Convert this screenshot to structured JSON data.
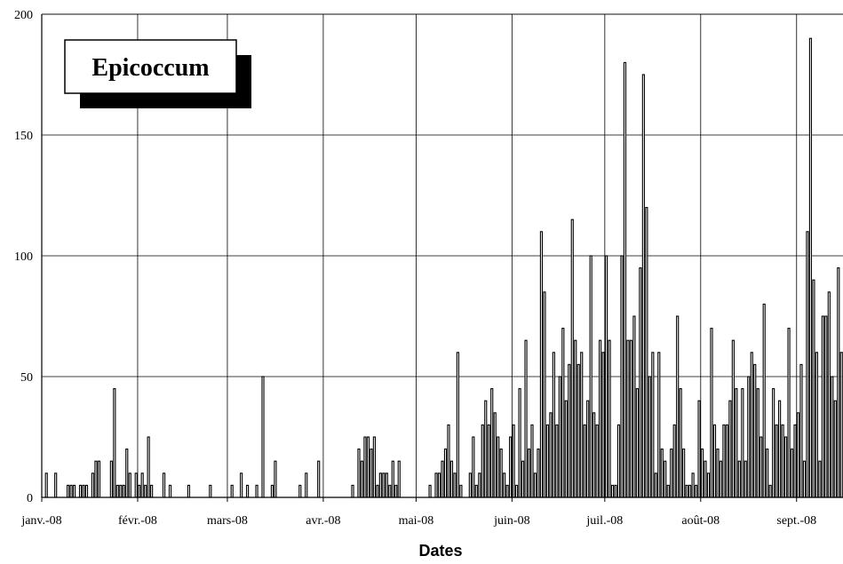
{
  "chart_data": {
    "type": "bar",
    "title": "Epicoccum",
    "xlabel": "Dates",
    "ylabel": "",
    "ylim": [
      0,
      200
    ],
    "y_ticks": [
      "0",
      "50",
      "100",
      "150",
      "200"
    ],
    "x_tick_labels": [
      "janv.-08",
      "févr.-08",
      "mars-08",
      "avr.-08",
      "mai-08",
      "juin-08",
      "juil.-08",
      "août-08",
      "sept.-08"
    ],
    "x_tick_dates": [
      "2008-01-01",
      "2008-02-01",
      "2008-03-01",
      "2008-04-01",
      "2008-05-01",
      "2008-06-01",
      "2008-07-01",
      "2008-08-01",
      "2008-09-01"
    ],
    "x_range": [
      "2008-01-01",
      "2008-09-15"
    ],
    "grid": true,
    "bar_color": "#000000",
    "points": [
      [
        "2008-01-02",
        10
      ],
      [
        "2008-01-05",
        10
      ],
      [
        "2008-01-09",
        5
      ],
      [
        "2008-01-10",
        5
      ],
      [
        "2008-01-11",
        5
      ],
      [
        "2008-01-13",
        5
      ],
      [
        "2008-01-14",
        5
      ],
      [
        "2008-01-15",
        5
      ],
      [
        "2008-01-17",
        10
      ],
      [
        "2008-01-18",
        15
      ],
      [
        "2008-01-19",
        15
      ],
      [
        "2008-01-23",
        15
      ],
      [
        "2008-01-24",
        45
      ],
      [
        "2008-01-25",
        5
      ],
      [
        "2008-01-26",
        5
      ],
      [
        "2008-01-27",
        5
      ],
      [
        "2008-01-28",
        20
      ],
      [
        "2008-01-29",
        10
      ],
      [
        "2008-01-31",
        10
      ],
      [
        "2008-02-01",
        5
      ],
      [
        "2008-02-02",
        10
      ],
      [
        "2008-02-03",
        5
      ],
      [
        "2008-02-04",
        25
      ],
      [
        "2008-02-05",
        5
      ],
      [
        "2008-02-09",
        10
      ],
      [
        "2008-02-11",
        5
      ],
      [
        "2008-02-17",
        5
      ],
      [
        "2008-02-24",
        5
      ],
      [
        "2008-03-02",
        5
      ],
      [
        "2008-03-05",
        10
      ],
      [
        "2008-03-07",
        5
      ],
      [
        "2008-03-10",
        5
      ],
      [
        "2008-03-12",
        50
      ],
      [
        "2008-03-15",
        5
      ],
      [
        "2008-03-16",
        15
      ],
      [
        "2008-03-24",
        5
      ],
      [
        "2008-03-26",
        10
      ],
      [
        "2008-03-30",
        15
      ],
      [
        "2008-04-10",
        5
      ],
      [
        "2008-04-12",
        20
      ],
      [
        "2008-04-13",
        15
      ],
      [
        "2008-04-14",
        25
      ],
      [
        "2008-04-15",
        25
      ],
      [
        "2008-04-16",
        20
      ],
      [
        "2008-04-17",
        25
      ],
      [
        "2008-04-18",
        5
      ],
      [
        "2008-04-19",
        10
      ],
      [
        "2008-04-20",
        10
      ],
      [
        "2008-04-21",
        10
      ],
      [
        "2008-04-22",
        5
      ],
      [
        "2008-04-23",
        15
      ],
      [
        "2008-04-24",
        5
      ],
      [
        "2008-04-25",
        15
      ],
      [
        "2008-05-05",
        5
      ],
      [
        "2008-05-07",
        10
      ],
      [
        "2008-05-08",
        10
      ],
      [
        "2008-05-09",
        15
      ],
      [
        "2008-05-10",
        20
      ],
      [
        "2008-05-11",
        30
      ],
      [
        "2008-05-12",
        15
      ],
      [
        "2008-05-13",
        10
      ],
      [
        "2008-05-14",
        60
      ],
      [
        "2008-05-15",
        5
      ],
      [
        "2008-05-18",
        10
      ],
      [
        "2008-05-19",
        25
      ],
      [
        "2008-05-20",
        5
      ],
      [
        "2008-05-21",
        10
      ],
      [
        "2008-05-22",
        30
      ],
      [
        "2008-05-23",
        40
      ],
      [
        "2008-05-24",
        30
      ],
      [
        "2008-05-25",
        45
      ],
      [
        "2008-05-26",
        35
      ],
      [
        "2008-05-27",
        25
      ],
      [
        "2008-05-28",
        20
      ],
      [
        "2008-05-29",
        10
      ],
      [
        "2008-05-30",
        5
      ],
      [
        "2008-05-31",
        25
      ],
      [
        "2008-06-01",
        30
      ],
      [
        "2008-06-02",
        5
      ],
      [
        "2008-06-03",
        45
      ],
      [
        "2008-06-04",
        15
      ],
      [
        "2008-06-05",
        65
      ],
      [
        "2008-06-06",
        20
      ],
      [
        "2008-06-07",
        30
      ],
      [
        "2008-06-08",
        10
      ],
      [
        "2008-06-09",
        20
      ],
      [
        "2008-06-10",
        110
      ],
      [
        "2008-06-11",
        85
      ],
      [
        "2008-06-12",
        30
      ],
      [
        "2008-06-13",
        35
      ],
      [
        "2008-06-14",
        60
      ],
      [
        "2008-06-15",
        30
      ],
      [
        "2008-06-16",
        50
      ],
      [
        "2008-06-17",
        70
      ],
      [
        "2008-06-18",
        40
      ],
      [
        "2008-06-19",
        55
      ],
      [
        "2008-06-20",
        115
      ],
      [
        "2008-06-21",
        65
      ],
      [
        "2008-06-22",
        55
      ],
      [
        "2008-06-23",
        60
      ],
      [
        "2008-06-24",
        30
      ],
      [
        "2008-06-25",
        40
      ],
      [
        "2008-06-26",
        100
      ],
      [
        "2008-06-27",
        35
      ],
      [
        "2008-06-28",
        30
      ],
      [
        "2008-06-29",
        65
      ],
      [
        "2008-06-30",
        60
      ],
      [
        "2008-07-01",
        100
      ],
      [
        "2008-07-02",
        65
      ],
      [
        "2008-07-03",
        5
      ],
      [
        "2008-07-04",
        5
      ],
      [
        "2008-07-05",
        30
      ],
      [
        "2008-07-06",
        100
      ],
      [
        "2008-07-07",
        180
      ],
      [
        "2008-07-08",
        65
      ],
      [
        "2008-07-09",
        65
      ],
      [
        "2008-07-10",
        75
      ],
      [
        "2008-07-11",
        45
      ],
      [
        "2008-07-12",
        95
      ],
      [
        "2008-07-13",
        175
      ],
      [
        "2008-07-14",
        120
      ],
      [
        "2008-07-15",
        50
      ],
      [
        "2008-07-16",
        60
      ],
      [
        "2008-07-17",
        10
      ],
      [
        "2008-07-18",
        60
      ],
      [
        "2008-07-19",
        20
      ],
      [
        "2008-07-20",
        15
      ],
      [
        "2008-07-21",
        5
      ],
      [
        "2008-07-22",
        20
      ],
      [
        "2008-07-23",
        30
      ],
      [
        "2008-07-24",
        75
      ],
      [
        "2008-07-25",
        45
      ],
      [
        "2008-07-26",
        20
      ],
      [
        "2008-07-27",
        5
      ],
      [
        "2008-07-28",
        5
      ],
      [
        "2008-07-29",
        10
      ],
      [
        "2008-07-30",
        5
      ],
      [
        "2008-07-31",
        40
      ],
      [
        "2008-08-01",
        20
      ],
      [
        "2008-08-02",
        15
      ],
      [
        "2008-08-03",
        10
      ],
      [
        "2008-08-04",
        70
      ],
      [
        "2008-08-05",
        30
      ],
      [
        "2008-08-06",
        20
      ],
      [
        "2008-08-07",
        15
      ],
      [
        "2008-08-08",
        30
      ],
      [
        "2008-08-09",
        30
      ],
      [
        "2008-08-10",
        40
      ],
      [
        "2008-08-11",
        65
      ],
      [
        "2008-08-12",
        45
      ],
      [
        "2008-08-13",
        15
      ],
      [
        "2008-08-14",
        45
      ],
      [
        "2008-08-15",
        15
      ],
      [
        "2008-08-16",
        50
      ],
      [
        "2008-08-17",
        60
      ],
      [
        "2008-08-18",
        55
      ],
      [
        "2008-08-19",
        45
      ],
      [
        "2008-08-20",
        25
      ],
      [
        "2008-08-21",
        80
      ],
      [
        "2008-08-22",
        20
      ],
      [
        "2008-08-23",
        5
      ],
      [
        "2008-08-24",
        45
      ],
      [
        "2008-08-25",
        30
      ],
      [
        "2008-08-26",
        40
      ],
      [
        "2008-08-27",
        30
      ],
      [
        "2008-08-28",
        25
      ],
      [
        "2008-08-29",
        70
      ],
      [
        "2008-08-30",
        20
      ],
      [
        "2008-08-31",
        30
      ],
      [
        "2008-09-01",
        35
      ],
      [
        "2008-09-02",
        55
      ],
      [
        "2008-09-03",
        15
      ],
      [
        "2008-09-04",
        110
      ],
      [
        "2008-09-05",
        190
      ],
      [
        "2008-09-06",
        90
      ],
      [
        "2008-09-07",
        60
      ],
      [
        "2008-09-08",
        15
      ],
      [
        "2008-09-09",
        75
      ],
      [
        "2008-09-10",
        75
      ],
      [
        "2008-09-11",
        85
      ],
      [
        "2008-09-12",
        50
      ],
      [
        "2008-09-13",
        40
      ],
      [
        "2008-09-14",
        95
      ],
      [
        "2008-09-15",
        60
      ]
    ]
  }
}
